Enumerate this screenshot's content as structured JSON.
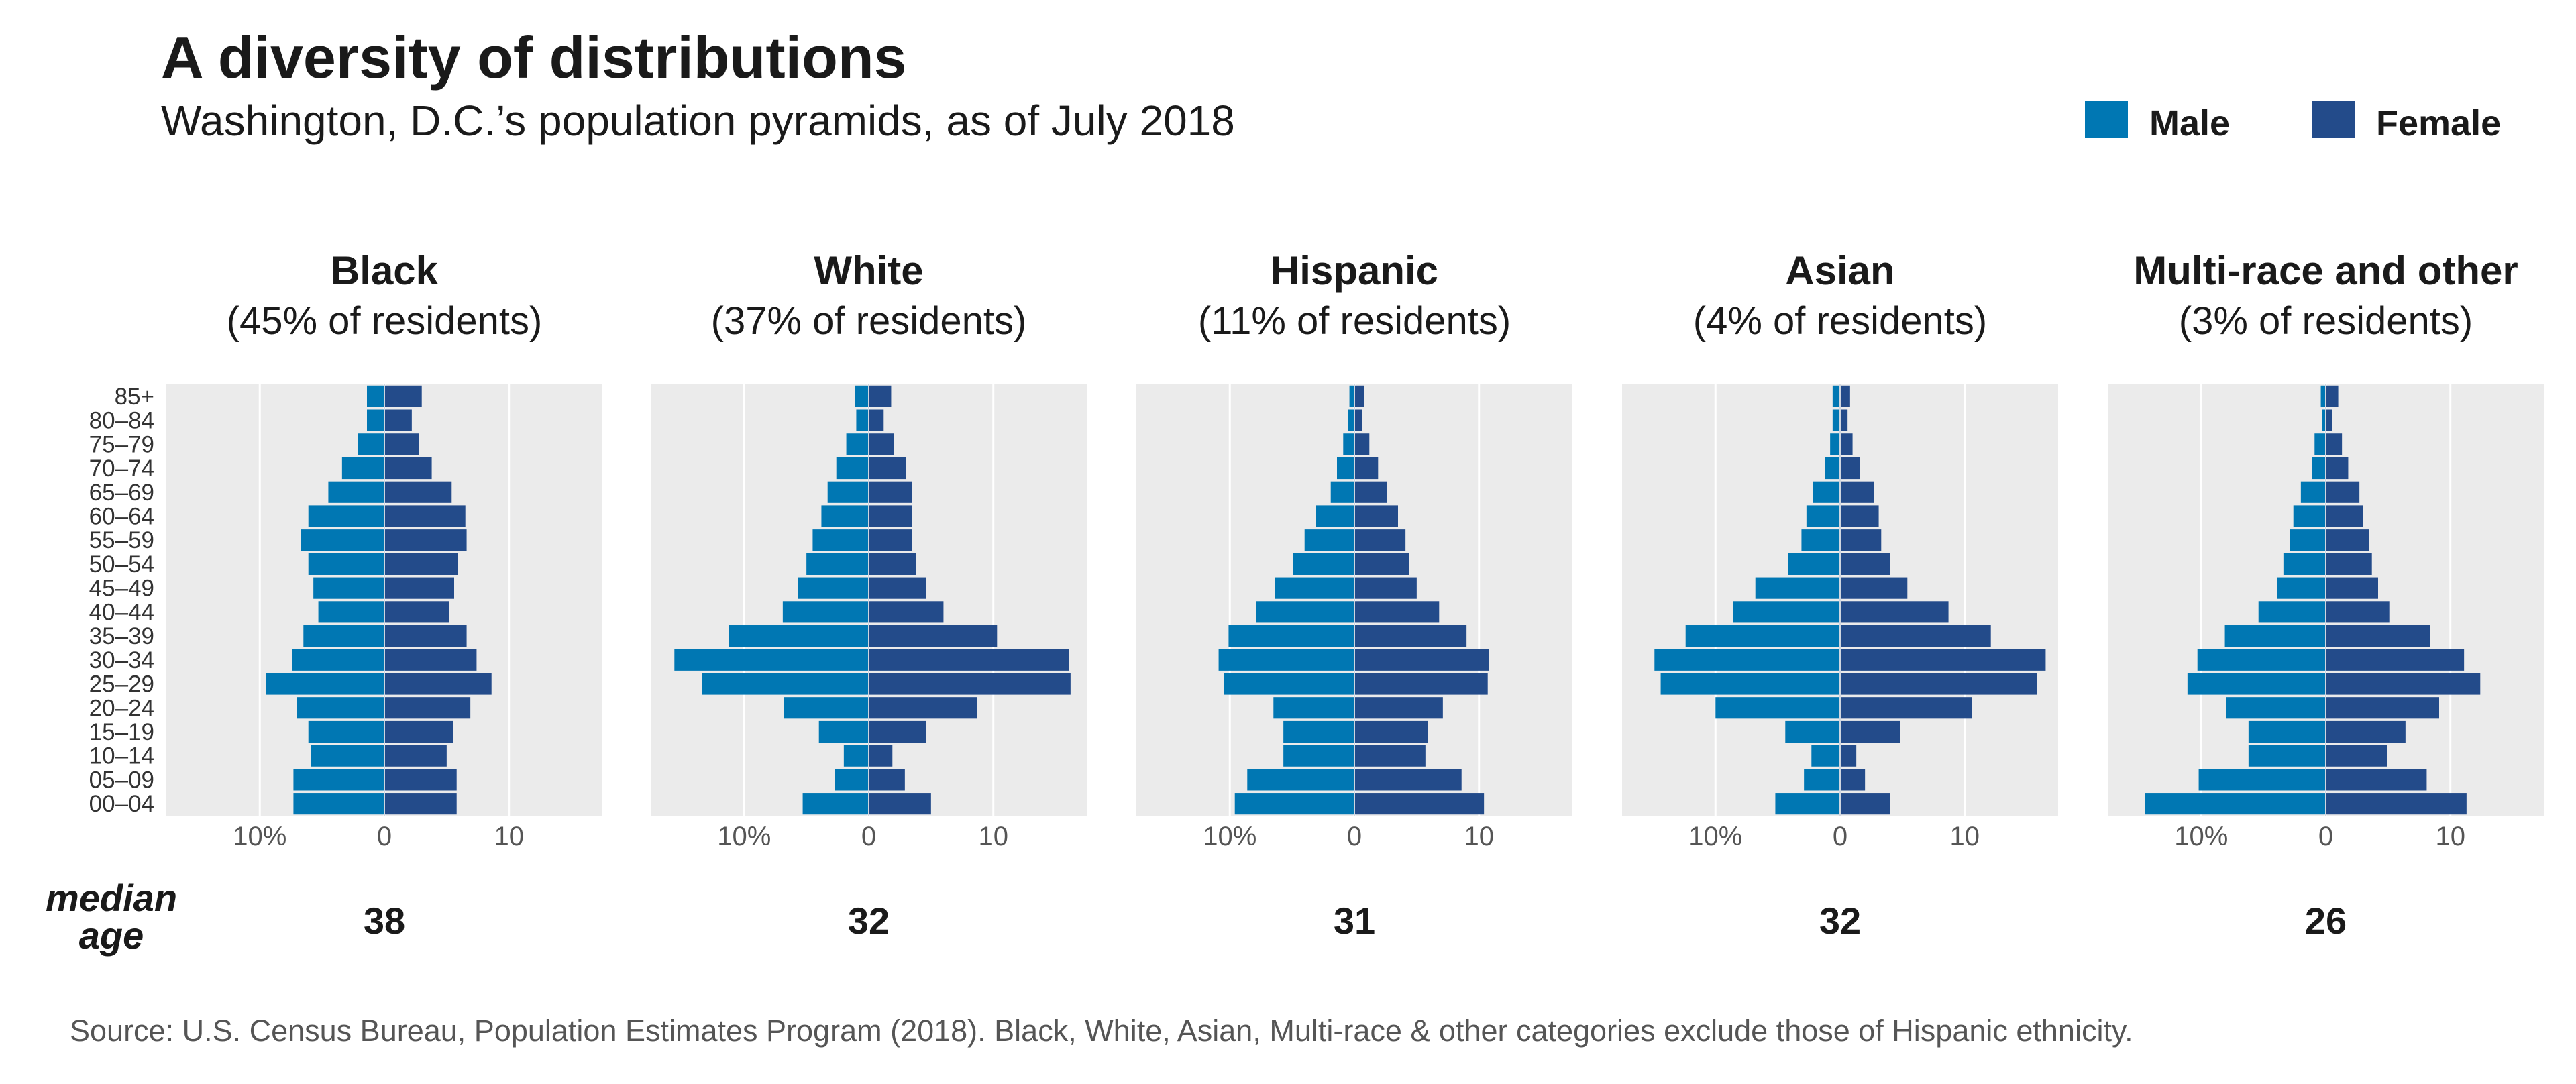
{
  "title": "A diversity of distributions",
  "subtitle": "Washington, D.C.’s population pyramids, as of July 2018",
  "legend": [
    {
      "label": "Male",
      "color": "#0077b3"
    },
    {
      "label": "Female",
      "color": "#234b8a"
    }
  ],
  "median_label": [
    "median",
    "age"
  ],
  "source": "Source: U.S. Census Bureau, Population Estimates Program (2018). Black, White, Asian, Multi-race & other categories exclude those of Hispanic ethnicity.",
  "chart_data": {
    "type": "bar",
    "orientation": "horizontal-pyramid",
    "age_groups": [
      "85+",
      "80–84",
      "75–79",
      "70–74",
      "65–69",
      "60–64",
      "55–59",
      "50–54",
      "45–49",
      "40–44",
      "35–39",
      "30–34",
      "25–29",
      "20–24",
      "15–19",
      "10–14",
      "05–09",
      "00–04"
    ],
    "x_ticks": [
      "10%",
      "0",
      "10"
    ],
    "xlim": [
      -17.5,
      17.5
    ],
    "grid": true,
    "panels": [
      {
        "group": "Black",
        "share": "(45% of residents)",
        "median_age": "38",
        "male": [
          1.4,
          1.4,
          2.1,
          3.4,
          4.5,
          6.1,
          6.7,
          6.1,
          5.7,
          5.3,
          6.5,
          7.4,
          9.5,
          7.0,
          6.1,
          5.9,
          7.3,
          7.3
        ],
        "female": [
          3.0,
          2.2,
          2.8,
          3.8,
          5.4,
          6.5,
          6.6,
          5.9,
          5.6,
          5.2,
          6.6,
          7.4,
          8.6,
          6.9,
          5.5,
          5.0,
          5.8,
          5.8
        ]
      },
      {
        "group": "White",
        "share": "(37% of residents)",
        "median_age": "32",
        "male": [
          1.1,
          1.0,
          1.8,
          2.6,
          3.3,
          3.8,
          4.5,
          5.0,
          5.7,
          6.9,
          11.2,
          15.6,
          13.4,
          6.8,
          4.0,
          2.0,
          2.7,
          5.3
        ],
        "female": [
          1.8,
          1.2,
          2.0,
          3.0,
          3.5,
          3.5,
          3.5,
          3.8,
          4.6,
          6.0,
          10.3,
          16.1,
          16.2,
          8.7,
          4.6,
          1.9,
          2.9,
          5.0
        ]
      },
      {
        "group": "Hispanic",
        "share": "(11% of residents)",
        "median_age": "31",
        "male": [
          0.4,
          0.5,
          0.9,
          1.4,
          1.9,
          3.1,
          4.0,
          4.9,
          6.4,
          7.9,
          10.1,
          10.9,
          10.5,
          6.5,
          5.7,
          5.7,
          8.6,
          9.6
        ],
        "female": [
          0.8,
          0.6,
          1.2,
          1.9,
          2.6,
          3.5,
          4.1,
          4.4,
          5.0,
          6.8,
          9.0,
          10.8,
          10.7,
          7.1,
          5.9,
          5.7,
          8.6,
          10.4
        ]
      },
      {
        "group": "Asian",
        "share": "(4% of residents)",
        "median_age": "32",
        "male": [
          0.6,
          0.6,
          0.8,
          1.2,
          2.2,
          2.7,
          3.1,
          4.2,
          6.8,
          8.6,
          12.4,
          14.9,
          14.4,
          10.0,
          4.4,
          2.3,
          2.9,
          5.2
        ],
        "female": [
          0.8,
          0.6,
          1.0,
          1.6,
          2.7,
          3.1,
          3.3,
          4.0,
          5.4,
          8.7,
          12.1,
          16.5,
          15.8,
          10.6,
          4.8,
          1.3,
          2.0,
          4.0
        ]
      },
      {
        "group": "Multi-race and other",
        "share": "(3% of residents)",
        "median_age": "26",
        "male": [
          0.4,
          0.3,
          0.9,
          1.1,
          2.0,
          2.6,
          2.9,
          3.4,
          3.9,
          5.4,
          8.1,
          10.3,
          11.1,
          8.0,
          6.2,
          6.2,
          10.2,
          14.5
        ],
        "female": [
          1.0,
          0.5,
          1.3,
          1.8,
          2.7,
          3.0,
          3.5,
          3.7,
          4.2,
          5.1,
          8.4,
          11.1,
          12.4,
          9.1,
          6.4,
          4.9,
          8.1,
          11.3
        ]
      }
    ]
  }
}
